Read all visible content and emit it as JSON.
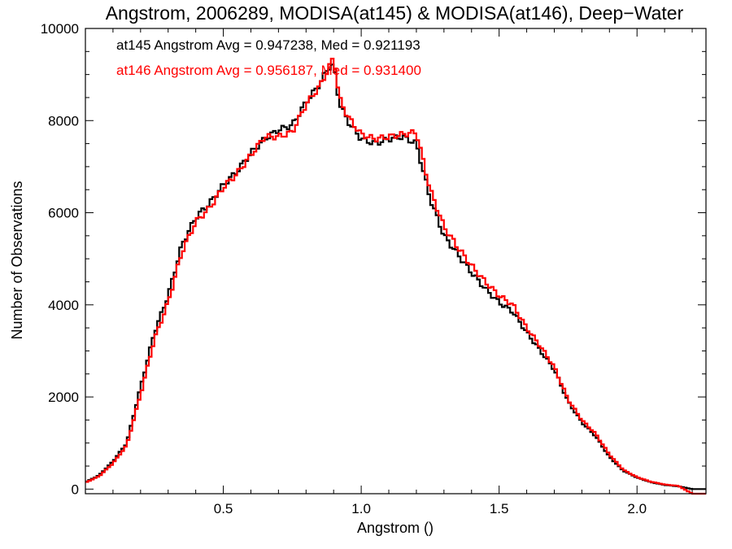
{
  "chart_data": {
    "type": "line",
    "style": "histogram-step",
    "title": "Angstrom, 2006289, MODISA(at145) & MODISA(at146), Deep−Water",
    "xlabel": "Angstrom ()",
    "ylabel": "Number of Observations",
    "xlim": [
      0.0,
      2.25
    ],
    "ylim": [
      -100,
      10000
    ],
    "x_ticks": [
      0.5,
      1.0,
      1.5,
      2.0
    ],
    "x_tick_labels": [
      "0.5",
      "1.0",
      "1.5",
      "2.0"
    ],
    "y_ticks": [
      0,
      2000,
      4000,
      6000,
      8000,
      10000
    ],
    "y_tick_labels": [
      "0",
      "2000",
      "4000",
      "6000",
      "8000",
      "10000"
    ],
    "grid": false,
    "annotations": [
      {
        "text": "at145 Angstrom Avg = 0.947238, Med = 0.921193",
        "color": "#000000"
      },
      {
        "text": "at146 Angstrom Avg = 0.956187, Med = 0.931400",
        "color": "#ff0000"
      }
    ],
    "x": [
      0.0,
      0.05,
      0.1,
      0.15,
      0.2,
      0.25,
      0.3,
      0.35,
      0.4,
      0.45,
      0.5,
      0.55,
      0.6,
      0.65,
      0.7,
      0.75,
      0.8,
      0.85,
      0.88,
      0.9,
      0.92,
      0.95,
      1.0,
      1.05,
      1.1,
      1.15,
      1.2,
      1.25,
      1.3,
      1.35,
      1.4,
      1.45,
      1.5,
      1.55,
      1.6,
      1.65,
      1.7,
      1.75,
      1.8,
      1.85,
      1.9,
      1.95,
      2.0,
      2.05,
      2.1,
      2.15,
      2.2,
      2.25
    ],
    "series": [
      {
        "name": "at145",
        "color": "#000000",
        "values": [
          150,
          300,
          600,
          1000,
          2200,
          3400,
          4200,
          5300,
          5900,
          6200,
          6600,
          6900,
          7300,
          7600,
          7800,
          7900,
          8400,
          8800,
          9150,
          9200,
          8400,
          8000,
          7600,
          7500,
          7600,
          7650,
          7500,
          6300,
          5500,
          5100,
          4700,
          4350,
          4050,
          3850,
          3400,
          3000,
          2600,
          1900,
          1450,
          1150,
          700,
          400,
          250,
          150,
          90,
          60,
          0,
          0
        ]
      },
      {
        "name": "at146",
        "color": "#ff0000",
        "values": [
          140,
          280,
          560,
          950,
          2050,
          3250,
          4050,
          5150,
          5800,
          6100,
          6550,
          6850,
          7250,
          7650,
          7650,
          7750,
          8350,
          8750,
          9100,
          9400,
          8500,
          8100,
          7700,
          7600,
          7650,
          7700,
          7750,
          6500,
          5700,
          5250,
          4850,
          4500,
          4200,
          4000,
          3500,
          3100,
          2650,
          1950,
          1500,
          1200,
          750,
          420,
          260,
          160,
          100,
          70,
          -100,
          -100
        ]
      }
    ]
  }
}
